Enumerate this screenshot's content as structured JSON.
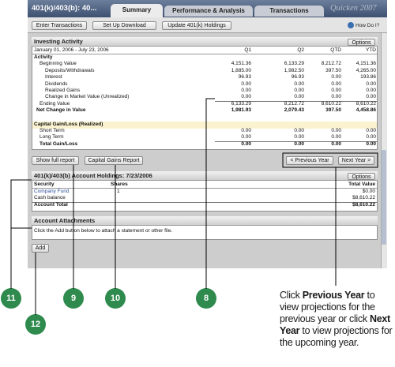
{
  "header": {
    "title": "401(k)/403(b): 40...",
    "tabs": [
      "Summary",
      "Performance & Analysis",
      "Transactions"
    ],
    "brand": "Quicken 2007"
  },
  "toolbar": {
    "buttons": [
      "Enter Transactions",
      "Set Up Download",
      "Update 401(k) Holdings"
    ],
    "help": "How Do I?"
  },
  "activity": {
    "title": "Investing Activity",
    "options": "Options",
    "date_range": "January 01, 2006 - July 23, 2006",
    "columns": [
      "Q1",
      "Q2",
      "QTD",
      "YTD"
    ],
    "sections": [
      {
        "heading": "Activity",
        "rows": [
          {
            "label": "Beginning Value",
            "values": [
              "4,151.36",
              "6,133.29",
              "8,212.72",
              "4,151.36"
            ]
          },
          {
            "label": "Deposits/Withdrawals",
            "values": [
              "1,885.00",
              "1,982.50",
              "397.50",
              "4,265.00"
            ]
          },
          {
            "label": "Interest",
            "values": [
              "96.93",
              "96.93",
              "0.00",
              "193.86"
            ]
          },
          {
            "label": "Dividends",
            "values": [
              "0.00",
              "0.00",
              "0.00",
              "0.00"
            ]
          },
          {
            "label": "Realized Gains",
            "values": [
              "0.00",
              "0.00",
              "0.00",
              "0.00"
            ]
          },
          {
            "label": "Change in Market Value (Unrealized)",
            "values": [
              "0.00",
              "0.00",
              "0.00",
              "0.00"
            ]
          },
          {
            "label": "Ending Value",
            "values": [
              "6,133.29",
              "8,212.72",
              "8,610.22",
              "8,610.22"
            ]
          },
          {
            "label": "Net Change in Value",
            "values": [
              "1,981.93",
              "2,079.43",
              "397.50",
              "4,458.86"
            ]
          }
        ]
      },
      {
        "heading": "Capital Gain/Loss (Realized)",
        "rows": [
          {
            "label": "Short Term",
            "values": [
              "0.00",
              "0.00",
              "0.00",
              "0.00"
            ]
          },
          {
            "label": "Long Term",
            "values": [
              "0.00",
              "0.00",
              "0.00",
              "0.00"
            ]
          },
          {
            "label": "Total Gain/Loss",
            "values": [
              "0.00",
              "0.00",
              "0.00",
              "0.00"
            ]
          }
        ]
      }
    ],
    "report_buttons": [
      "Show full report",
      "Capital Gains Report"
    ],
    "year_buttons": [
      "< Previous Year",
      "Next Year >"
    ]
  },
  "holdings": {
    "title": "401(k)/403(b) Account Holdings:  7/23/2006",
    "options": "Options",
    "columns": [
      "Security",
      "Shares",
      "Total Value"
    ],
    "rows": [
      {
        "security": "Company Fund",
        "shares": "1",
        "value": "$0.00"
      },
      {
        "security": "Cash balance",
        "value": "$8,610.22"
      },
      {
        "security": "Account Total",
        "value": "$8,610.22"
      }
    ]
  },
  "attachments": {
    "title": "Account Attachments",
    "text": "Click the Add button below to attach a statement or other file.",
    "button": "Add"
  },
  "callouts": [
    "11",
    "9",
    "10",
    "8",
    "12"
  ],
  "caption": [
    "Click ",
    "Previous Year",
    " to view projections for the previous year  or click ",
    "Next Year",
    " to view projections for the upcoming year."
  ]
}
